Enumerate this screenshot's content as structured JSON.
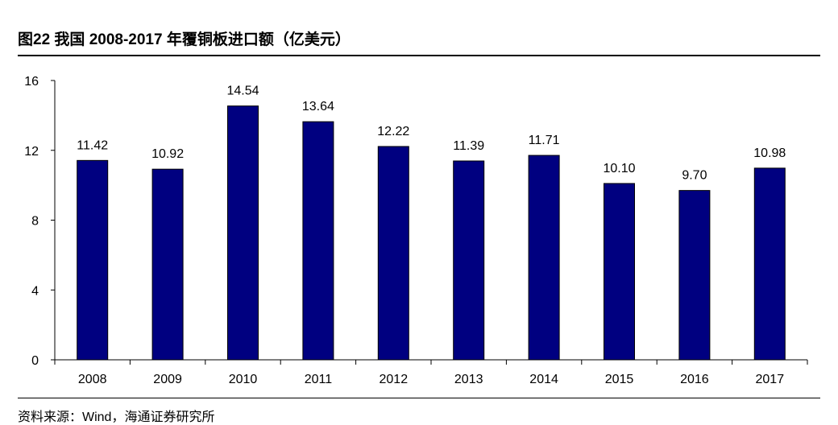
{
  "title": "图22  我国 2008-2017 年覆铜板进口额（亿美元）",
  "source": "资料来源：Wind，海通证券研究所",
  "chart_data": {
    "type": "bar",
    "title": "",
    "xlabel": "",
    "ylabel": "",
    "categories": [
      "2008",
      "2009",
      "2010",
      "2011",
      "2012",
      "2013",
      "2014",
      "2015",
      "2016",
      "2017"
    ],
    "values": [
      11.42,
      10.92,
      14.54,
      13.64,
      12.22,
      11.39,
      11.71,
      10.1,
      9.7,
      10.98
    ],
    "value_labels": [
      "11.42",
      "10.92",
      "14.54",
      "13.64",
      "12.22",
      "11.39",
      "11.71",
      "10.10",
      "9.70",
      "10.98"
    ],
    "ylim": [
      0,
      16
    ],
    "yticks": [
      0,
      4,
      8,
      12,
      16
    ],
    "bar_color": "#000080",
    "grid": false,
    "legend": "none"
  }
}
